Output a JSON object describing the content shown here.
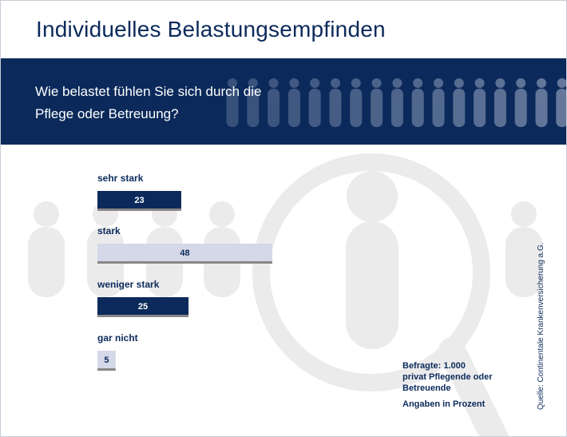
{
  "header": {
    "title": "Individuelles Belastungsempfinden",
    "question_line1": "Wie belastet fühlen Sie sich durch die",
    "question_line2": "Pflege oder Betreuung?"
  },
  "chart_data": {
    "type": "bar",
    "orientation": "horizontal",
    "categories": [
      "sehr stark",
      "stark",
      "weniger stark",
      "gar nicht"
    ],
    "values": [
      23,
      48,
      25,
      5
    ],
    "unit": "Prozent",
    "colors": [
      "#0b2a5b",
      "#d5d8e8",
      "#0b2a5b",
      "#d5d8e8"
    ],
    "value_label_colors": [
      "#ffffff",
      "#0b2a5b",
      "#ffffff",
      "#0b2a5b"
    ]
  },
  "info": {
    "respondents_line1": "Befragte: 1.000",
    "respondents_line2": "privat Pflegende oder",
    "respondents_line3": "Betreuende",
    "unit_note": "Angaben in Prozent"
  },
  "source": "Quelle: Continentale Krankenversicherung a.G.",
  "colors": {
    "navy": "#0b2a5b",
    "light_bar": "#d5d8e8",
    "bar_shadow": "#8a8688",
    "figure_grey": "#ebebeb"
  }
}
